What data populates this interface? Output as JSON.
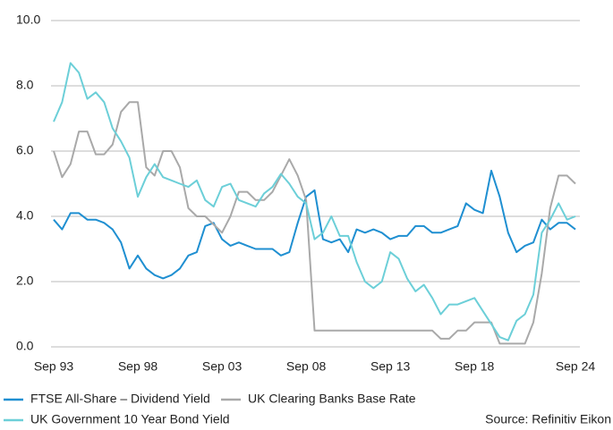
{
  "chart_data": {
    "type": "line",
    "categories": [
      "Sep 93",
      null,
      null,
      null,
      null,
      null,
      null,
      null,
      null,
      null,
      "Sep 98",
      null,
      null,
      null,
      null,
      null,
      null,
      null,
      null,
      null,
      "Sep 03",
      null,
      null,
      null,
      null,
      null,
      null,
      null,
      null,
      null,
      "Sep 08",
      null,
      null,
      null,
      null,
      null,
      null,
      null,
      null,
      null,
      "Sep 13",
      null,
      null,
      null,
      null,
      null,
      null,
      null,
      null,
      null,
      "Sep 18",
      null,
      null,
      null,
      null,
      null,
      null,
      null,
      null,
      null,
      null,
      null,
      "Sep 24"
    ],
    "series": [
      {
        "name": "FTSE All-Share – Dividend Yield",
        "color": "#1f8fd1",
        "values": [
          3.9,
          3.6,
          4.1,
          4.1,
          3.9,
          3.9,
          3.8,
          3.6,
          3.2,
          2.4,
          2.8,
          2.4,
          2.2,
          2.1,
          2.2,
          2.4,
          2.8,
          2.9,
          3.7,
          3.8,
          3.3,
          3.1,
          3.2,
          3.1,
          3.0,
          3.0,
          3.0,
          2.8,
          2.9,
          3.8,
          4.6,
          4.8,
          3.3,
          3.2,
          3.3,
          2.9,
          3.6,
          3.5,
          3.6,
          3.5,
          3.3,
          3.4,
          3.4,
          3.7,
          3.7,
          3.5,
          3.5,
          3.6,
          3.7,
          4.4,
          4.2,
          4.1,
          5.4,
          4.6,
          3.5,
          2.9,
          3.1,
          3.2,
          3.9,
          3.6,
          3.8,
          3.8,
          3.6
        ]
      },
      {
        "name": "UK Clearing Banks Base Rate",
        "color": "#a9a9a9",
        "values": [
          6.0,
          5.2,
          5.6,
          6.6,
          6.6,
          5.9,
          5.9,
          6.2,
          7.2,
          7.5,
          7.5,
          5.5,
          5.25,
          6.0,
          6.0,
          5.5,
          4.25,
          4.0,
          4.0,
          3.75,
          3.5,
          4.0,
          4.75,
          4.75,
          4.5,
          4.5,
          4.75,
          5.25,
          5.75,
          5.25,
          4.5,
          0.5,
          0.5,
          0.5,
          0.5,
          0.5,
          0.5,
          0.5,
          0.5,
          0.5,
          0.5,
          0.5,
          0.5,
          0.5,
          0.5,
          0.5,
          0.25,
          0.25,
          0.5,
          0.5,
          0.75,
          0.75,
          0.75,
          0.1,
          0.1,
          0.1,
          0.1,
          0.75,
          2.25,
          4.25,
          5.25,
          5.25,
          5.0
        ]
      },
      {
        "name": "UK Government 10 Year Bond Yield",
        "color": "#6ccfd8",
        "values": [
          6.9,
          7.5,
          8.7,
          8.4,
          7.6,
          7.8,
          7.5,
          6.7,
          6.3,
          5.8,
          4.6,
          5.2,
          5.6,
          5.2,
          5.1,
          5.0,
          4.9,
          5.1,
          4.5,
          4.3,
          4.9,
          5.0,
          4.5,
          4.4,
          4.3,
          4.7,
          4.9,
          5.3,
          5.0,
          4.6,
          4.4,
          3.3,
          3.5,
          4.0,
          3.4,
          3.4,
          2.6,
          2.0,
          1.8,
          2.0,
          2.9,
          2.7,
          2.1,
          1.7,
          1.9,
          1.5,
          1.0,
          1.3,
          1.3,
          1.4,
          1.5,
          1.1,
          0.7,
          0.3,
          0.2,
          0.8,
          1.0,
          1.6,
          3.5,
          3.9,
          4.4,
          3.9,
          4.0
        ]
      }
    ],
    "ylim": [
      0,
      10
    ],
    "yticks": [
      {
        "value": 0,
        "label": "0.0"
      },
      {
        "value": 2,
        "label": "2.0"
      },
      {
        "value": 4,
        "label": "4.0"
      },
      {
        "value": 6,
        "label": "6.0"
      },
      {
        "value": 8,
        "label": "8.0"
      },
      {
        "value": 10,
        "label": "10.0"
      }
    ],
    "grid": true,
    "source": "Source: Refinitiv Eikon"
  }
}
